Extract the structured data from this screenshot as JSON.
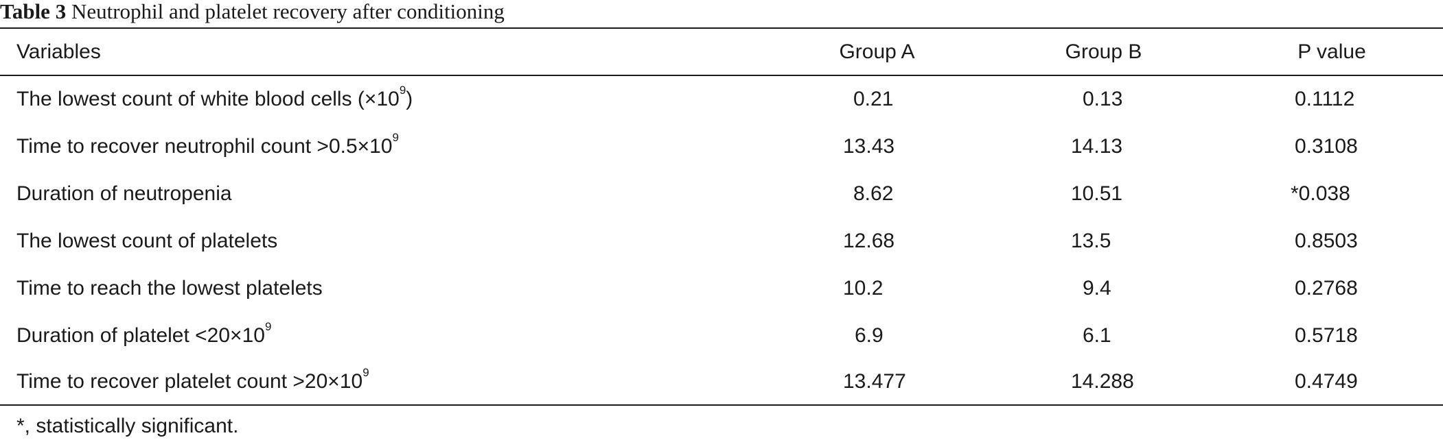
{
  "title": {
    "label": "Table 3",
    "text": "Neutrophil and platelet recovery after conditioning"
  },
  "table": {
    "headers": [
      "Variables",
      "Group A",
      "Group B",
      "P value"
    ],
    "rows": [
      {
        "variable": "The lowest count of white blood cells (×10",
        "sup": "9",
        "suffix": ")",
        "group_a": "0.21",
        "group_b": "0.13",
        "p_value": "0.1112"
      },
      {
        "variable": "Time to recover neutrophil count >0.5×10",
        "sup": "9",
        "suffix": "",
        "group_a": "13.43",
        "group_b": "14.13",
        "p_value": "0.3108"
      },
      {
        "variable": "Duration of neutropenia",
        "sup": "",
        "suffix": "",
        "group_a": "8.62",
        "group_b": "10.51",
        "p_value": "*0.038"
      },
      {
        "variable": "The lowest count of platelets",
        "sup": "",
        "suffix": "",
        "group_a": "12.68",
        "group_b": "13.5",
        "p_value": "0.8503"
      },
      {
        "variable": "Time to reach the lowest platelets",
        "sup": "",
        "suffix": "",
        "group_a": "10.2",
        "group_b": "9.4",
        "p_value": "0.2768"
      },
      {
        "variable": "Duration of platelet <20×10",
        "sup": "9",
        "suffix": "",
        "group_a": "6.9",
        "group_b": "6.1",
        "p_value": "0.5718"
      },
      {
        "variable": "Time to recover platelet count >20×10",
        "sup": "9",
        "suffix": "",
        "group_a": "13.477",
        "group_b": "14.288",
        "p_value": "0.4749"
      }
    ]
  },
  "footnote": "*, statistically significant."
}
